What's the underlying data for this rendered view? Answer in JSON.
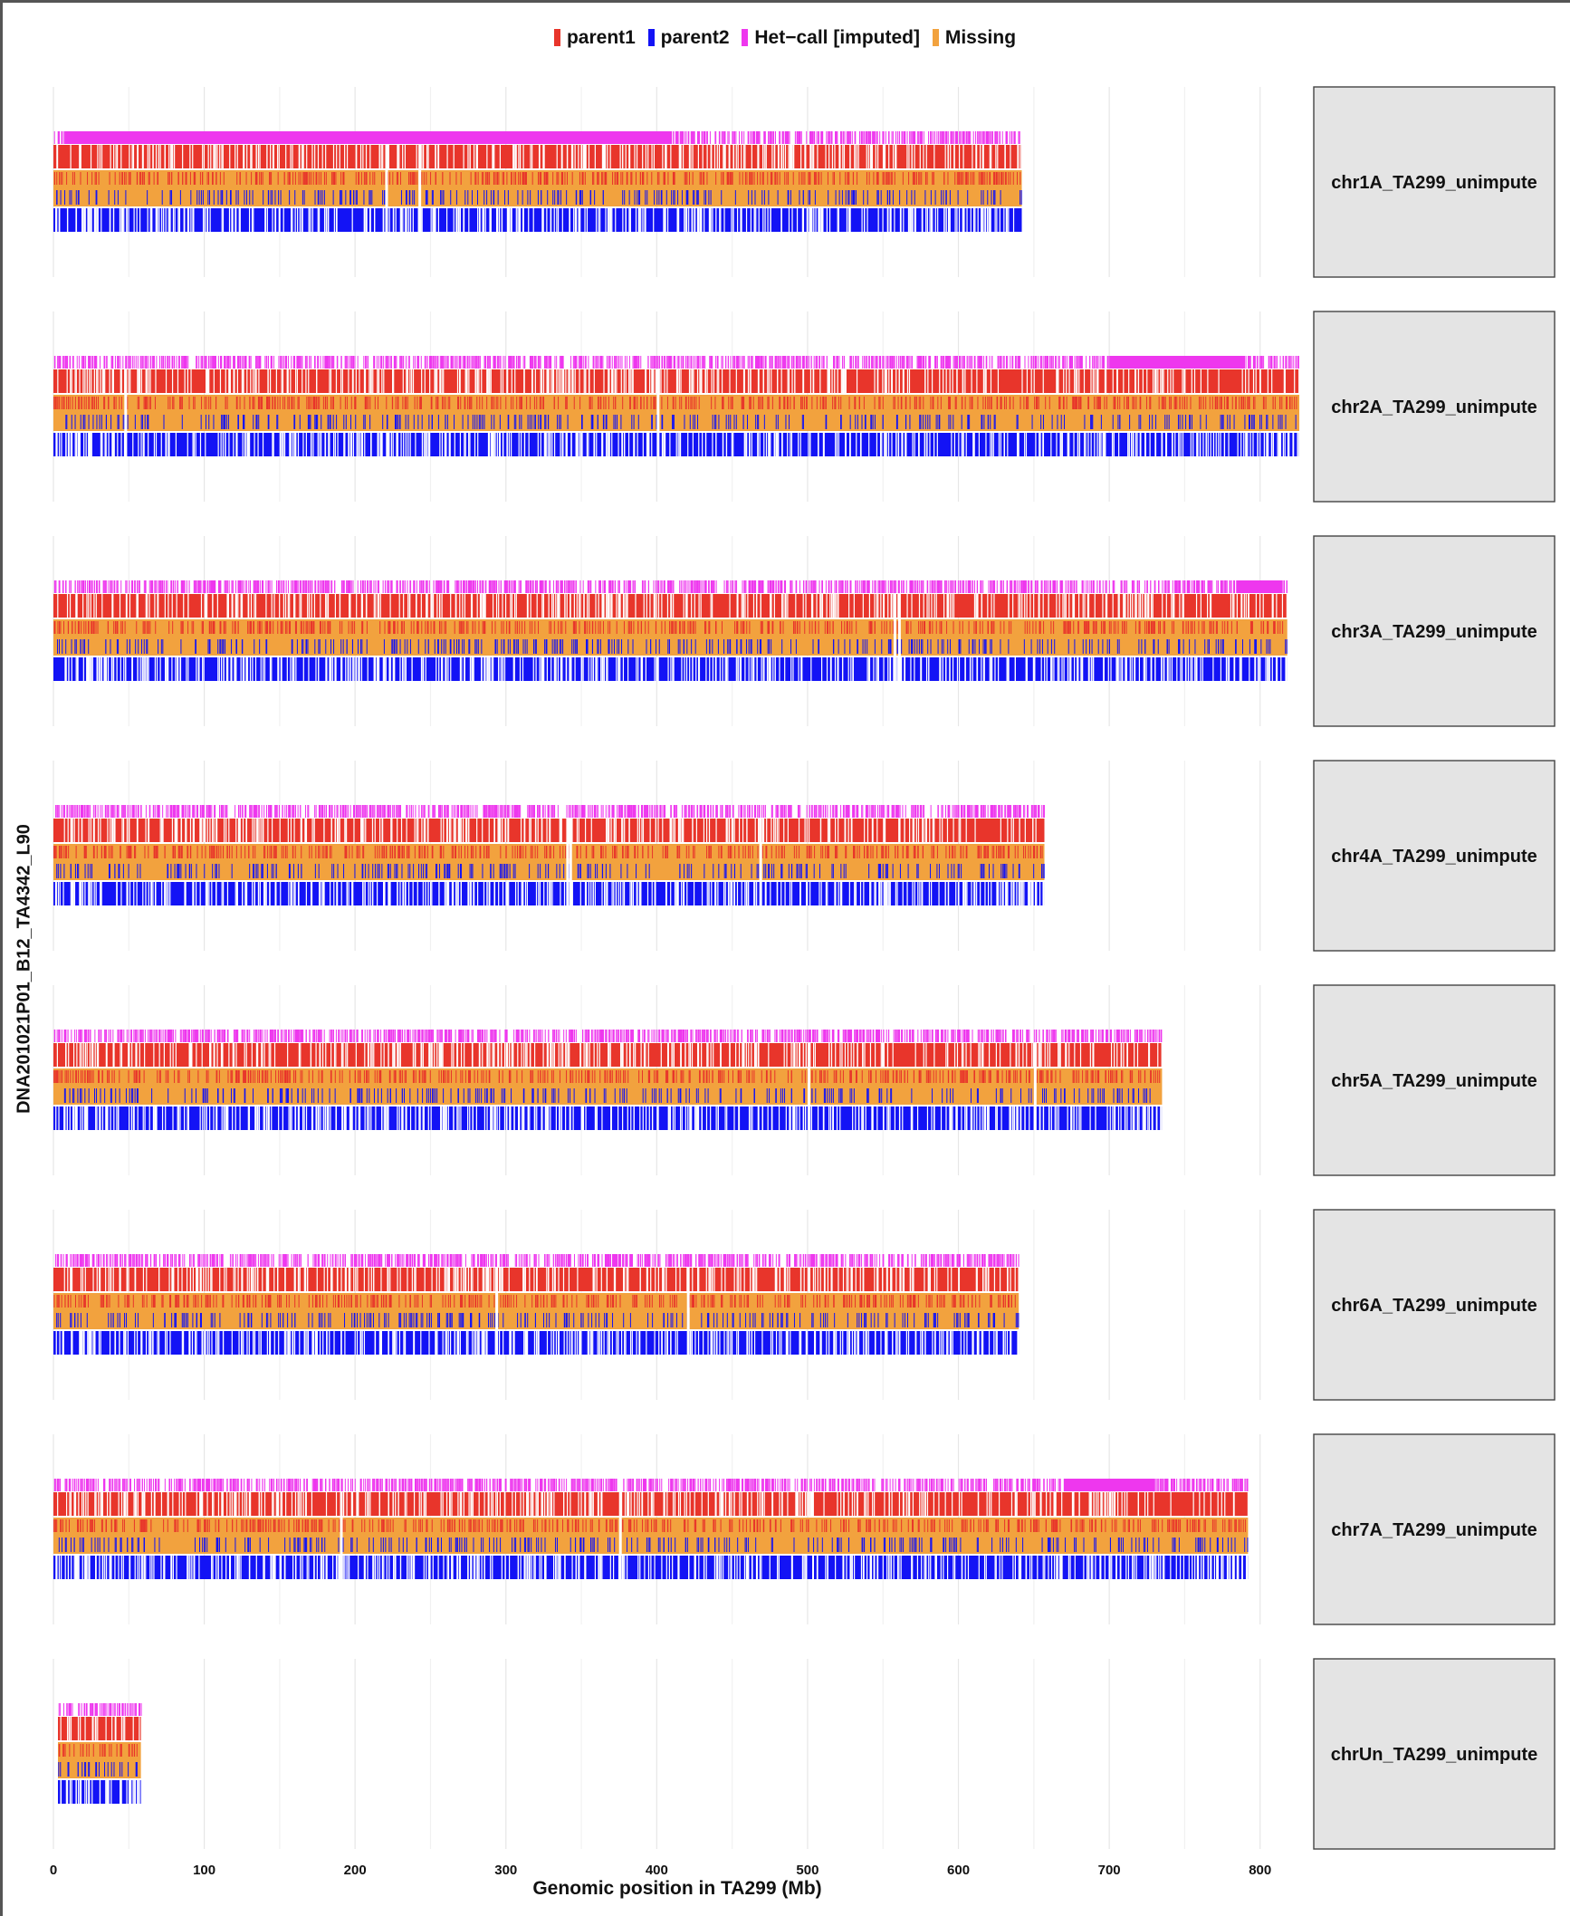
{
  "legend": {
    "items": [
      {
        "label": "parent1",
        "color": "#e8352b"
      },
      {
        "label": "parent2",
        "color": "#1313f5"
      },
      {
        "label": "Het−call [imputed]",
        "color": "#ee37ee"
      },
      {
        "label": "Missing",
        "color": "#f2a23e"
      }
    ]
  },
  "chart_data": {
    "type": "genotype-track",
    "title": "",
    "xlabel": "Genomic position in TA299 (Mb)",
    "ylabel": "DNA201021P01_B12_TA4342_L90",
    "xlim": [
      0,
      835
    ],
    "xticks": [
      0,
      100,
      200,
      300,
      400,
      500,
      600,
      700,
      800
    ],
    "grid": true,
    "legend_position": "top",
    "series": [
      {
        "name": "parent1",
        "color": "#e8352b"
      },
      {
        "name": "parent2",
        "color": "#1313f5"
      },
      {
        "name": "Het−call [imputed]",
        "color": "#ee37ee"
      },
      {
        "name": "Missing",
        "color": "#f2a23e"
      }
    ],
    "panels": [
      {
        "label": "chr1A_TA299_unimpute",
        "start": 0,
        "end": 642,
        "het_block": [
          8,
          410
        ],
        "gaps": [
          220,
          242
        ]
      },
      {
        "label": "chr2A_TA299_unimpute",
        "start": 0,
        "end": 826,
        "het_block": [
          700,
          790
        ],
        "gaps": [
          47,
          400
        ]
      },
      {
        "label": "chr3A_TA299_unimpute",
        "start": 0,
        "end": 818,
        "het_block": [
          785,
          815
        ],
        "gaps": [
          557,
          560
        ]
      },
      {
        "label": "chr4A_TA299_unimpute",
        "start": 0,
        "end": 657,
        "het_block": [],
        "gaps": [
          340,
          342,
          468
        ]
      },
      {
        "label": "chr5A_TA299_unimpute",
        "start": 0,
        "end": 735,
        "het_block": [],
        "gaps": [
          500,
          650
        ]
      },
      {
        "label": "chr6A_TA299_unimpute",
        "start": 0,
        "end": 640,
        "het_block": [],
        "gaps": [
          293,
          420
        ]
      },
      {
        "label": "chr7A_TA299_unimpute",
        "start": 0,
        "end": 792,
        "het_block": [
          670,
          730
        ],
        "gaps": [
          190,
          375
        ]
      },
      {
        "label": "chrUn_TA299_unimpute",
        "start": 3,
        "end": 58,
        "het_block": [],
        "gaps": []
      }
    ]
  }
}
